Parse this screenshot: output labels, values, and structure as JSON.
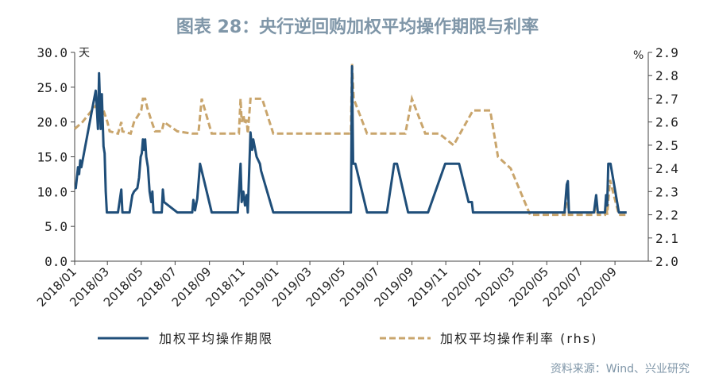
{
  "chart_data": {
    "type": "line",
    "title": "图表 28：央行逆回购加权平均操作期限与利率",
    "y_left_unit": "天",
    "y_right_unit": "%",
    "ylim_left": [
      0,
      30
    ],
    "ylim_right": [
      2.0,
      2.9
    ],
    "y_left_ticks": [
      "0.0",
      "5.0",
      "10.0",
      "15.0",
      "20.0",
      "25.0",
      "30.0"
    ],
    "y_right_ticks": [
      "2.0",
      "2.1",
      "2.2",
      "2.3",
      "2.4",
      "2.5",
      "2.6",
      "2.7",
      "2.8",
      "2.9"
    ],
    "x_ticks": [
      "2018/01",
      "2018/03",
      "2018/05",
      "2018/07",
      "2018/09",
      "2018/11",
      "2019/01",
      "2019/03",
      "2019/05",
      "2019/07",
      "2019/09",
      "2019/11",
      "2020/01",
      "2020/03",
      "2020/05",
      "2020/07",
      "2020/09"
    ],
    "xlim": [
      "2018-01-01",
      "2020-10-31"
    ],
    "grid": false,
    "legend_position": "bottom",
    "series": [
      {
        "name": "加权平均操作期限",
        "axis": "left",
        "color": "#1f4e79",
        "style": "solid",
        "points": [
          [
            "2018-01-01",
            10.5
          ],
          [
            "2018-01-03",
            10.5
          ],
          [
            "2018-01-05",
            12
          ],
          [
            "2018-01-07",
            13.5
          ],
          [
            "2018-01-09",
            12.5
          ],
          [
            "2018-01-11",
            14.5
          ],
          [
            "2018-01-13",
            13.5
          ],
          [
            "2018-02-02",
            22
          ],
          [
            "2018-02-08",
            24.5
          ],
          [
            "2018-02-10",
            22
          ],
          [
            "2018-02-12",
            19
          ],
          [
            "2018-02-14",
            27
          ],
          [
            "2018-02-17",
            19
          ],
          [
            "2018-02-19",
            24
          ],
          [
            "2018-02-22",
            16.5
          ],
          [
            "2018-02-24",
            15.5
          ],
          [
            "2018-02-26",
            10
          ],
          [
            "2018-02-28",
            7
          ],
          [
            "2018-03-20",
            7
          ],
          [
            "2018-03-26",
            10.3
          ],
          [
            "2018-03-28",
            7
          ],
          [
            "2018-04-10",
            7
          ],
          [
            "2018-04-15",
            9.5
          ],
          [
            "2018-04-18",
            10
          ],
          [
            "2018-04-24",
            10.5
          ],
          [
            "2018-04-27",
            12
          ],
          [
            "2018-04-30",
            15
          ],
          [
            "2018-05-02",
            15.5
          ],
          [
            "2018-05-04",
            17.5
          ],
          [
            "2018-05-06",
            16
          ],
          [
            "2018-05-08",
            17.5
          ],
          [
            "2018-05-10",
            15
          ],
          [
            "2018-05-13",
            13.5
          ],
          [
            "2018-05-16",
            10
          ],
          [
            "2018-05-19",
            8.5
          ],
          [
            "2018-05-21",
            10
          ],
          [
            "2018-05-23",
            7
          ],
          [
            "2018-06-07",
            7
          ],
          [
            "2018-06-09",
            10.3
          ],
          [
            "2018-06-11",
            8.5
          ],
          [
            "2018-07-05",
            7
          ],
          [
            "2018-08-01",
            7
          ],
          [
            "2018-08-03",
            8.8
          ],
          [
            "2018-08-06",
            7.3
          ],
          [
            "2018-08-10",
            9
          ],
          [
            "2018-08-15",
            14
          ],
          [
            "2018-09-05",
            7
          ],
          [
            "2018-10-22",
            7
          ],
          [
            "2018-10-27",
            14
          ],
          [
            "2018-10-29",
            8.5
          ],
          [
            "2018-11-01",
            10
          ],
          [
            "2018-11-04",
            8
          ],
          [
            "2018-11-07",
            9.5
          ],
          [
            "2018-11-09",
            7
          ],
          [
            "2018-11-14",
            18.5
          ],
          [
            "2018-11-17",
            16
          ],
          [
            "2018-11-19",
            17.5
          ],
          [
            "2018-11-25",
            15
          ],
          [
            "2018-12-01",
            14
          ],
          [
            "2018-12-03",
            13
          ],
          [
            "2018-12-25",
            7
          ],
          [
            "2019-05-14",
            7
          ],
          [
            "2019-05-16",
            28
          ],
          [
            "2019-05-18",
            14
          ],
          [
            "2019-05-22",
            14
          ],
          [
            "2019-06-12",
            7
          ],
          [
            "2019-07-18",
            7
          ],
          [
            "2019-07-31",
            14
          ],
          [
            "2019-08-05",
            14
          ],
          [
            "2019-08-25",
            7
          ],
          [
            "2019-09-30",
            7
          ],
          [
            "2019-10-31",
            14
          ],
          [
            "2019-11-25",
            14
          ],
          [
            "2019-12-12",
            8.5
          ],
          [
            "2019-12-18",
            8.5
          ],
          [
            "2019-12-20",
            7
          ],
          [
            "2020-06-02",
            7
          ],
          [
            "2020-06-06",
            11
          ],
          [
            "2020-06-08",
            11.5
          ],
          [
            "2020-06-10",
            7
          ],
          [
            "2020-07-25",
            7
          ],
          [
            "2020-07-29",
            9.5
          ],
          [
            "2020-08-01",
            7
          ],
          [
            "2020-08-14",
            7
          ],
          [
            "2020-08-16",
            9.5
          ],
          [
            "2020-08-18",
            8
          ],
          [
            "2020-08-20",
            14
          ],
          [
            "2020-08-24",
            14
          ],
          [
            "2020-09-08",
            7
          ],
          [
            "2020-09-22",
            7
          ]
        ]
      },
      {
        "name": "加权平均操作利率  (rhs)",
        "axis": "right",
        "color": "#c9a56c",
        "style": "dashed",
        "points": [
          [
            "2018-01-01",
            2.57
          ],
          [
            "2018-01-15",
            2.6
          ],
          [
            "2018-02-01",
            2.65
          ],
          [
            "2018-02-08",
            2.67
          ],
          [
            "2018-02-14",
            2.69
          ],
          [
            "2018-02-17",
            2.67
          ],
          [
            "2018-02-22",
            2.65
          ],
          [
            "2018-03-01",
            2.6
          ],
          [
            "2018-03-05",
            2.56
          ],
          [
            "2018-03-20",
            2.55
          ],
          [
            "2018-03-26",
            2.6
          ],
          [
            "2018-03-28",
            2.56
          ],
          [
            "2018-04-12",
            2.55
          ],
          [
            "2018-04-18",
            2.6
          ],
          [
            "2018-05-01",
            2.65
          ],
          [
            "2018-05-04",
            2.7
          ],
          [
            "2018-05-08",
            2.7
          ],
          [
            "2018-05-12",
            2.66
          ],
          [
            "2018-05-20",
            2.6
          ],
          [
            "2018-05-26",
            2.56
          ],
          [
            "2018-06-07",
            2.56
          ],
          [
            "2018-06-11",
            2.6
          ],
          [
            "2018-07-05",
            2.56
          ],
          [
            "2018-08-01",
            2.55
          ],
          [
            "2018-08-12",
            2.55
          ],
          [
            "2018-08-18",
            2.7
          ],
          [
            "2018-09-05",
            2.55
          ],
          [
            "2018-10-24",
            2.55
          ],
          [
            "2018-10-27",
            2.7
          ],
          [
            "2018-10-29",
            2.6
          ],
          [
            "2018-11-01",
            2.63
          ],
          [
            "2018-11-04",
            2.59
          ],
          [
            "2018-11-07",
            2.61
          ],
          [
            "2018-11-09",
            2.55
          ],
          [
            "2018-11-14",
            2.7
          ],
          [
            "2018-12-05",
            2.7
          ],
          [
            "2018-12-25",
            2.55
          ],
          [
            "2019-05-14",
            2.55
          ],
          [
            "2019-05-16",
            2.85
          ],
          [
            "2019-05-19",
            2.7
          ],
          [
            "2019-06-12",
            2.55
          ],
          [
            "2019-08-20",
            2.55
          ],
          [
            "2019-09-01",
            2.7
          ],
          [
            "2019-09-25",
            2.55
          ],
          [
            "2019-10-20",
            2.55
          ],
          [
            "2019-11-15",
            2.5
          ],
          [
            "2019-12-20",
            2.65
          ],
          [
            "2020-01-20",
            2.65
          ],
          [
            "2020-02-03",
            2.45
          ],
          [
            "2020-02-26",
            2.4
          ],
          [
            "2020-04-01",
            2.2
          ],
          [
            "2020-06-02",
            2.2
          ],
          [
            "2020-06-08",
            2.3
          ],
          [
            "2020-06-10",
            2.2
          ],
          [
            "2020-07-25",
            2.2
          ],
          [
            "2020-07-29",
            2.25
          ],
          [
            "2020-08-01",
            2.2
          ],
          [
            "2020-08-14",
            2.2
          ],
          [
            "2020-08-16",
            2.25
          ],
          [
            "2020-08-18",
            2.2
          ],
          [
            "2020-08-23",
            2.35
          ],
          [
            "2020-09-08",
            2.2
          ],
          [
            "2020-09-22",
            2.2
          ]
        ]
      }
    ],
    "source": "资料来源：Wind、兴业研究"
  }
}
